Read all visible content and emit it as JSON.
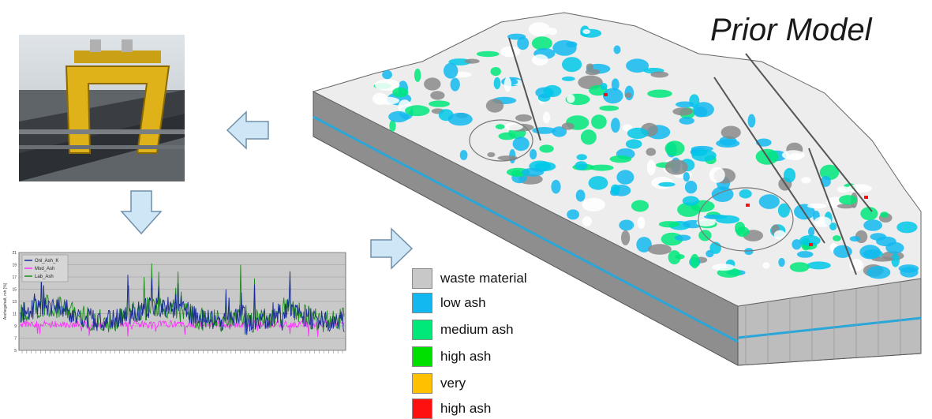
{
  "title": "Prior Model",
  "legend": [
    {
      "label": "waste material",
      "color": "#c8c8c8"
    },
    {
      "label": "low ash",
      "color": "#12b8ef"
    },
    {
      "label": "medium ash",
      "color": "#00e87a"
    },
    {
      "label": "high ash",
      "color": "#00e000"
    },
    {
      "label": "very",
      "color": "#ffc000"
    },
    {
      "label": "high ash",
      "color": "#ff1010"
    }
  ],
  "chart": {
    "series_names": [
      "Onl_Ash_K",
      "Mod_Ash",
      "Lab_Ash"
    ],
    "colors": {
      "onl": "#1a2a9a",
      "mod": "#ff30ff",
      "lab": "#1a8a1a"
    },
    "yticks": [
      "21",
      "19",
      "17",
      "15",
      "13",
      "11",
      "9",
      "7",
      "5"
    ],
    "ylabel": "Aschegehalt, roh [%]"
  },
  "icons": [
    "conveyor-photo",
    "left-arrow-icon",
    "down-arrow-icon",
    "right-arrow-icon",
    "deposit-3d-model"
  ]
}
